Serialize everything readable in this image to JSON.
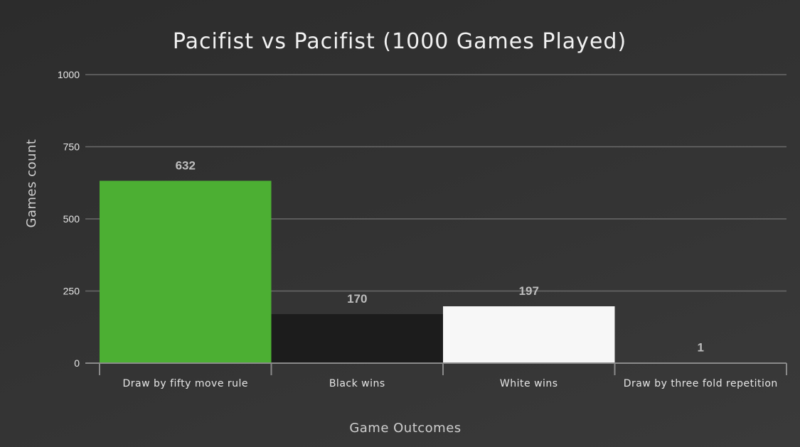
{
  "chart_data": {
    "type": "bar",
    "title": "Pacifist vs Pacifist (1000 Games Played)",
    "xlabel": "Game Outcomes",
    "ylabel": "Games count",
    "categories": [
      "Draw by fifty move rule",
      "Black wins",
      "White wins",
      "Draw by three fold repetition"
    ],
    "values": [
      632,
      170,
      197,
      1
    ],
    "bar_colors": [
      "#4caf33",
      "#1c1c1c",
      "#f7f7f7",
      "#4caf33"
    ],
    "ylim": [
      0,
      1000
    ],
    "yticks": [
      0,
      250,
      500,
      750,
      1000
    ],
    "grid": true,
    "data_labels": true
  }
}
